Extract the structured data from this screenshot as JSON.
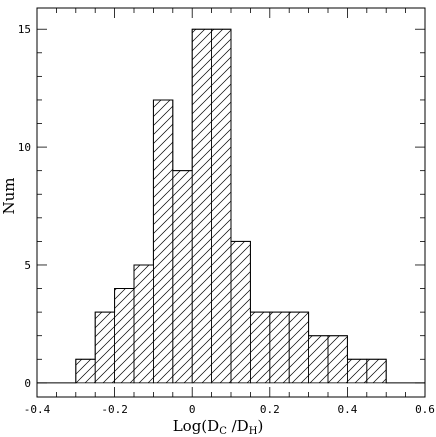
{
  "chart_data": {
    "type": "bar",
    "subtype": "histogram",
    "bin_width": 0.05,
    "bins": [
      {
        "x0": -0.3,
        "x1": -0.25,
        "count": 1
      },
      {
        "x0": -0.25,
        "x1": -0.2,
        "count": 3
      },
      {
        "x0": -0.2,
        "x1": -0.15,
        "count": 4
      },
      {
        "x0": -0.15,
        "x1": -0.1,
        "count": 5
      },
      {
        "x0": -0.1,
        "x1": -0.05,
        "count": 12
      },
      {
        "x0": -0.05,
        "x1": 0.0,
        "count": 9
      },
      {
        "x0": 0.0,
        "x1": 0.05,
        "count": 15
      },
      {
        "x0": 0.05,
        "x1": 0.1,
        "count": 15
      },
      {
        "x0": 0.1,
        "x1": 0.15,
        "count": 6
      },
      {
        "x0": 0.15,
        "x1": 0.2,
        "count": 3
      },
      {
        "x0": 0.2,
        "x1": 0.25,
        "count": 3
      },
      {
        "x0": 0.25,
        "x1": 0.3,
        "count": 3
      },
      {
        "x0": 0.3,
        "x1": 0.35,
        "count": 2
      },
      {
        "x0": 0.35,
        "x1": 0.4,
        "count": 2
      },
      {
        "x0": 0.4,
        "x1": 0.45,
        "count": 1
      },
      {
        "x0": 0.45,
        "x1": 0.5,
        "count": 1
      }
    ],
    "xlim": [
      -0.4,
      0.6
    ],
    "ylim": [
      -0.6,
      15.9
    ],
    "xticks": [
      -0.4,
      -0.2,
      0,
      0.2,
      0.4,
      0.6
    ],
    "xtick_labels": [
      "-0.4",
      "-0.2",
      "0",
      "0.2",
      "0.4",
      "0.6"
    ],
    "xminor_step": 0.05,
    "yticks": [
      0,
      5,
      10,
      15
    ],
    "ytick_labels": [
      "0",
      "5",
      "10",
      "15"
    ],
    "yminor_step": 1,
    "xlabel": "Log(D",
    "xlabel_sub1": "C",
    "xlabel_mid": " /D",
    "xlabel_sub2": "H",
    "xlabel_end": ")",
    "ylabel": "Num",
    "grid": false,
    "fill_pattern": "diagonal-hatch",
    "colors": {
      "line": "#000000",
      "hatch": "#000000",
      "background": "#ffffff"
    }
  }
}
